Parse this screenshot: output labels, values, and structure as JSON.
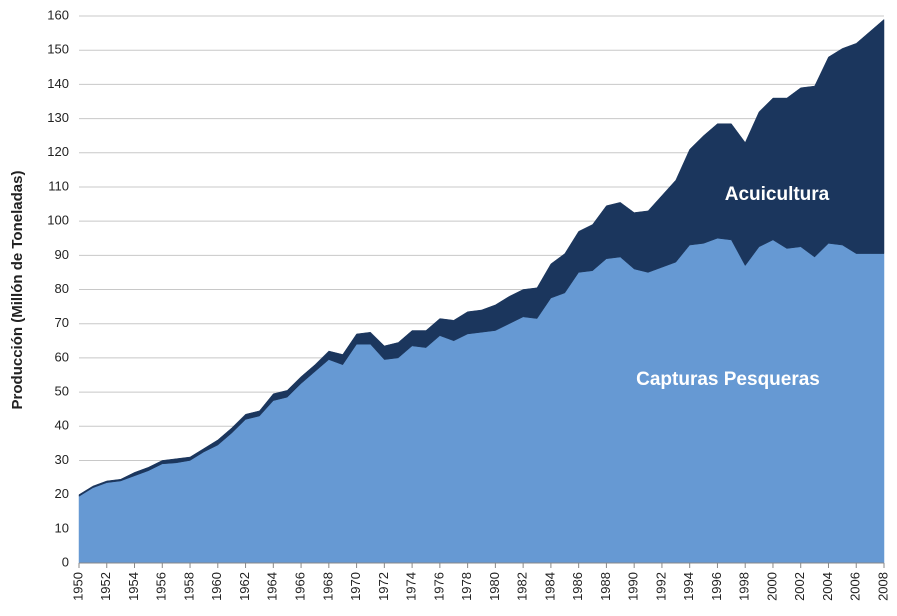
{
  "chart_data": {
    "type": "stacked_area",
    "y_label": "Producción (Millón de Toneladas)",
    "x": [
      1950,
      1951,
      1952,
      1953,
      1954,
      1955,
      1956,
      1957,
      1958,
      1959,
      1960,
      1961,
      1962,
      1963,
      1964,
      1965,
      1966,
      1967,
      1968,
      1969,
      1970,
      1971,
      1972,
      1973,
      1974,
      1975,
      1976,
      1977,
      1978,
      1979,
      1980,
      1981,
      1982,
      1983,
      1984,
      1985,
      1986,
      1987,
      1988,
      1989,
      1990,
      1991,
      1992,
      1993,
      1994,
      1995,
      1996,
      1997,
      1998,
      1999,
      2000,
      2001,
      2002,
      2003,
      2004,
      2005,
      2006,
      2007,
      2008
    ],
    "series": [
      {
        "name": "Capturas Pesqueras",
        "color": "#6699d3",
        "values": [
          19.5,
          22,
          23.5,
          24,
          25.5,
          27,
          29,
          29.3,
          30,
          32.5,
          34.5,
          38,
          42,
          43,
          47.5,
          48.5,
          52.5,
          56,
          59.5,
          58,
          64,
          64,
          59.5,
          60,
          63.5,
          63,
          66.5,
          65,
          67,
          67.5,
          68,
          70,
          72,
          71.5,
          77.5,
          79,
          85,
          85.5,
          89,
          89.5,
          86,
          85,
          86.5,
          88,
          93,
          93.5,
          95,
          94.5,
          87,
          92.5,
          94.5,
          92,
          92.5,
          89.5,
          93.5,
          93,
          90.5,
          90.5,
          90.5
        ]
      },
      {
        "name": "Acuicultura",
        "color": "#1b365d",
        "values": [
          0.5,
          0.5,
          0.5,
          0.5,
          1,
          1,
          1,
          1.2,
          1,
          1,
          1.5,
          1.5,
          1.5,
          1.5,
          2,
          2,
          2,
          2,
          2.5,
          3,
          3,
          3.5,
          4,
          4.5,
          4.5,
          5,
          5,
          6,
          6.5,
          6.5,
          7.5,
          8,
          8,
          9,
          10,
          11.5,
          12,
          13.5,
          15.5,
          16,
          16.5,
          18,
          21,
          24,
          28,
          31.5,
          33.5,
          34,
          36,
          39.5,
          41.5,
          44,
          46.5,
          50,
          54.5,
          57.5,
          61.5,
          65,
          68.5
        ]
      }
    ],
    "xlim": [
      1950,
      2008
    ],
    "xticks": [
      1950,
      1952,
      1954,
      1956,
      1958,
      1960,
      1962,
      1964,
      1966,
      1968,
      1970,
      1972,
      1974,
      1976,
      1978,
      1980,
      1982,
      1984,
      1986,
      1988,
      1990,
      1992,
      1994,
      1996,
      1998,
      2000,
      2002,
      2004,
      2006,
      2008
    ],
    "ylim": [
      0,
      160
    ],
    "yticks": [
      0,
      10,
      20,
      30,
      40,
      50,
      60,
      70,
      80,
      90,
      100,
      110,
      120,
      130,
      140,
      150,
      160
    ],
    "grid": true
  }
}
